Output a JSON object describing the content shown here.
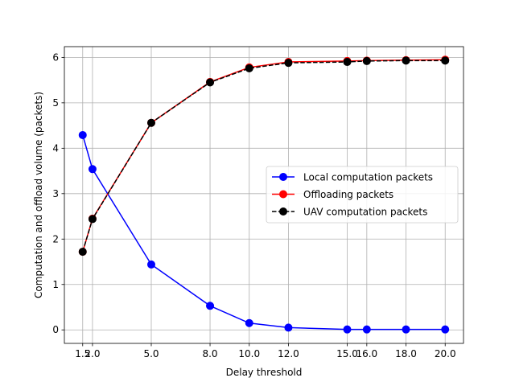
{
  "chart_data": {
    "type": "line",
    "xlabel": "Delay threshold",
    "ylabel": "Computation and offload volume (packets)",
    "xlim": [
      0.565,
      20.935
    ],
    "ylim": [
      -0.297,
      6.237
    ],
    "grid": true,
    "legend_position": "center-right",
    "x": [
      1.5,
      2.0,
      5.0,
      8.0,
      10.0,
      12.0,
      15.0,
      16.0,
      18.0,
      20.0
    ],
    "xtick_labels": [
      "1.5",
      "2.0",
      "5.0",
      "8.0",
      "10.0",
      "12.0",
      "15.0",
      "16.0",
      "18.0",
      "20.0"
    ],
    "yticks": [
      0,
      1,
      2,
      3,
      4,
      5,
      6
    ],
    "ytick_labels": [
      "0",
      "1",
      "2",
      "3",
      "4",
      "5",
      "6"
    ],
    "series": [
      {
        "name": "Local computation packets",
        "color": "#0000ff",
        "style": "solid",
        "values": [
          4.29,
          3.54,
          1.44,
          0.53,
          0.15,
          0.05,
          0.01,
          0.01,
          0.01,
          0.01
        ]
      },
      {
        "name": "Offloading packets",
        "color": "#ff0000",
        "style": "solid",
        "values": [
          1.72,
          2.45,
          4.56,
          5.46,
          5.78,
          5.9,
          5.92,
          5.93,
          5.94,
          5.95
        ]
      },
      {
        "name": "UAV computation packets",
        "color": "#000000",
        "style": "dashed",
        "values": [
          1.72,
          2.44,
          4.56,
          5.45,
          5.76,
          5.88,
          5.9,
          5.92,
          5.93,
          5.93
        ]
      }
    ]
  }
}
